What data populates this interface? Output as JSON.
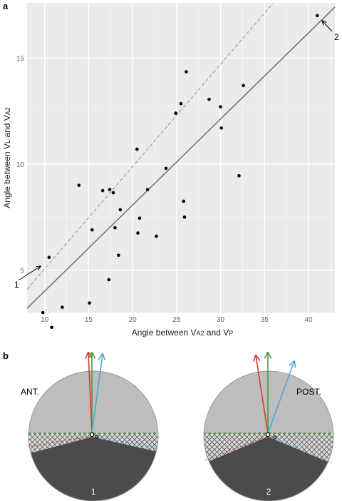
{
  "panels": {
    "a": "a",
    "b": "b"
  },
  "chart_data": {
    "type": "scatter",
    "xlabel": {
      "main": "Angle between V",
      "sub1": "A2",
      "mid": " and V",
      "sub2": "P"
    },
    "ylabel": {
      "main": "Angle between V",
      "sub1": "L",
      "mid": " and V",
      "sub2": "A2"
    },
    "xlim": [
      8,
      43
    ],
    "ylim": [
      3,
      17.6
    ],
    "xticks": [
      10,
      15,
      20,
      25,
      30,
      35,
      40
    ],
    "yticks": [
      5,
      10,
      15
    ],
    "grid": true,
    "background": "#ebebeb",
    "points": [
      {
        "x": 9.8,
        "y": 3.0
      },
      {
        "x": 10.5,
        "y": 5.6
      },
      {
        "x": 10.8,
        "y": 2.3
      },
      {
        "x": 12.0,
        "y": 3.25
      },
      {
        "x": 13.9,
        "y": 9.0
      },
      {
        "x": 15.1,
        "y": 3.45
      },
      {
        "x": 15.4,
        "y": 6.9
      },
      {
        "x": 16.6,
        "y": 8.75
      },
      {
        "x": 17.3,
        "y": 4.55
      },
      {
        "x": 17.4,
        "y": 8.8
      },
      {
        "x": 17.8,
        "y": 8.65
      },
      {
        "x": 18.0,
        "y": 7.0
      },
      {
        "x": 18.4,
        "y": 5.7
      },
      {
        "x": 18.6,
        "y": 7.85
      },
      {
        "x": 20.5,
        "y": 10.7
      },
      {
        "x": 20.6,
        "y": 6.75
      },
      {
        "x": 20.8,
        "y": 7.45
      },
      {
        "x": 21.7,
        "y": 8.8
      },
      {
        "x": 22.7,
        "y": 6.6
      },
      {
        "x": 23.8,
        "y": 9.8
      },
      {
        "x": 24.9,
        "y": 12.4
      },
      {
        "x": 25.5,
        "y": 12.85
      },
      {
        "x": 25.8,
        "y": 8.25
      },
      {
        "x": 25.9,
        "y": 7.5
      },
      {
        "x": 26.1,
        "y": 14.35
      },
      {
        "x": 28.7,
        "y": 13.05
      },
      {
        "x": 30.0,
        "y": 12.7
      },
      {
        "x": 30.1,
        "y": 11.7
      },
      {
        "x": 32.1,
        "y": 9.45
      },
      {
        "x": 32.6,
        "y": 13.7
      },
      {
        "x": 41.0,
        "y": 17.0
      }
    ],
    "lines": [
      {
        "style": "solid",
        "from": [
          8,
          3.2
        ],
        "to": [
          43,
          17.4
        ]
      },
      {
        "style": "dashed",
        "from": [
          8,
          4.1
        ],
        "to": [
          36,
          17.6
        ]
      }
    ],
    "annotations": [
      {
        "label": "1",
        "x": 9.8,
        "y": 3.0
      },
      {
        "label": "2",
        "x": 41.0,
        "y": 17.0
      }
    ]
  },
  "diagrams": [
    {
      "orientation_label": "ANT.",
      "number": "1"
    },
    {
      "orientation_label": "POST.",
      "number": "2"
    }
  ],
  "colors": {
    "red": "#d23a3c",
    "green": "#4a9a3c",
    "blue": "#4aa8d8",
    "light_gray": "#bfbcbd",
    "dark_gray": "#4b4b4d",
    "dash_green": "#4d9a3c"
  }
}
